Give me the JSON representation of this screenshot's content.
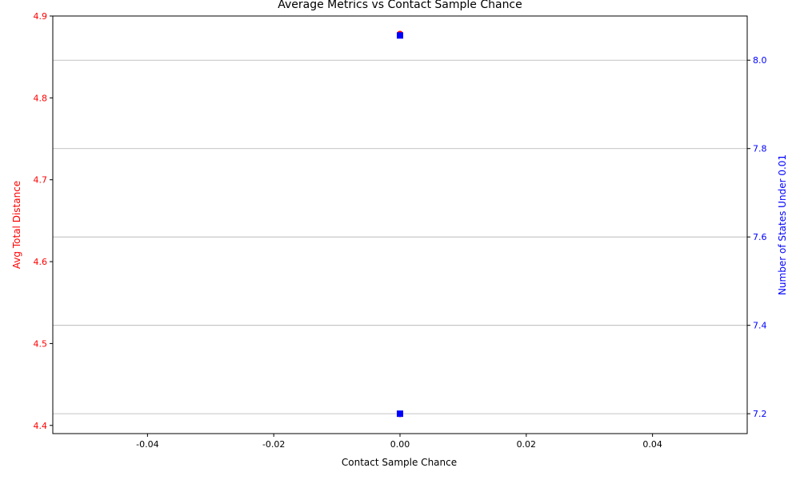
{
  "chart_data": {
    "type": "scatter",
    "title": "Average Metrics vs Contact Sample Chance",
    "xlabel": "Contact Sample Chance",
    "ylabel_left": "Avg Total Distance",
    "ylabel_right": "Number of States Under 0.01",
    "xlim": [
      -0.055,
      0.055
    ],
    "ylim_left": [
      4.39,
      4.9
    ],
    "ylim_right": [
      7.155,
      8.1
    ],
    "x_ticks": [
      "-0.04",
      "-0.02",
      "0.00",
      "0.02",
      "0.04"
    ],
    "x_tick_values": [
      -0.04,
      -0.02,
      0.0,
      0.02,
      0.04
    ],
    "y_left_ticks": [
      "4.4",
      "4.5",
      "4.6",
      "4.7",
      "4.8",
      "4.9"
    ],
    "y_left_tick_values": [
      4.4,
      4.5,
      4.6,
      4.7,
      4.8,
      4.9
    ],
    "y_right_ticks": [
      "7.2",
      "7.4",
      "7.6",
      "7.8",
      "8.0"
    ],
    "y_right_tick_values": [
      7.2,
      7.4,
      7.6,
      7.8,
      8.0
    ],
    "grid": "horizontal",
    "series": [
      {
        "axis": "left",
        "color": "#ff0000",
        "marker": "circle",
        "x": [
          0.0,
          0.0
        ],
        "y": [
          4.878,
          4.414
        ]
      },
      {
        "axis": "right",
        "color": "#0000ff",
        "marker": "square",
        "x": [
          0.0,
          0.0
        ],
        "y": [
          8.056,
          7.2
        ]
      }
    ],
    "colors": {
      "left_axis": "#ff0000",
      "right_axis": "#0000ff",
      "grid": "#b0b0b0",
      "frame": "#000000"
    }
  }
}
